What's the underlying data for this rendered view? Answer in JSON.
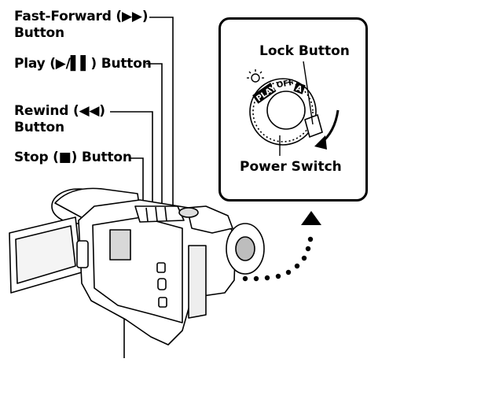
{
  "labels": {
    "fast_forward": "Fast-Forward (▶▶)",
    "fast_forward_line2": "Button",
    "play": "Play (▶/▌▌) Button",
    "rewind": "Rewind (◀◀)",
    "rewind_line2": "Button",
    "stop": "Stop (■) Button"
  },
  "inset": {
    "lock_button": "Lock Button",
    "power_switch": "Power Switch",
    "dial_play": "PLAY",
    "dial_off": "OFF",
    "dial_auto": "A"
  },
  "colors": {
    "line": "#000000",
    "body_fill": "#ffffff",
    "shade": "#c8c8c8",
    "dark_shade": "#8a8a8a"
  }
}
